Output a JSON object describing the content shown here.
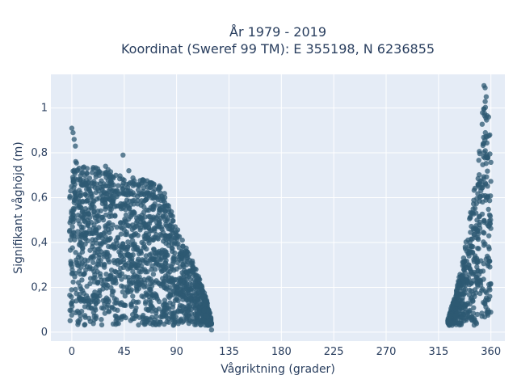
{
  "chart_data": {
    "type": "scatter",
    "title": "År 1979 - 2019",
    "subtitle": "Koordinat (Sweref 99 TM): E 355198, N 6236855",
    "xlabel": "Vågriktning (grader)",
    "ylabel": "Signifikant våghöjd (m)",
    "xlim": [
      -18,
      372
    ],
    "ylim": [
      -0.04,
      1.15
    ],
    "x_ticks": [
      0,
      45,
      90,
      135,
      180,
      225,
      270,
      315,
      360
    ],
    "x_tick_labels": [
      "0",
      "45",
      "90",
      "135",
      "180",
      "225",
      "270",
      "315",
      "360"
    ],
    "y_ticks": [
      0,
      0.2,
      0.4,
      0.6,
      0.8,
      1
    ],
    "y_tick_labels": [
      "0",
      "0,2",
      "0,4",
      "0,6",
      "0,8",
      "1"
    ],
    "grid": true,
    "marker_color": "#2e5a73",
    "background_color": "#e5ecf6",
    "clusters": [
      {
        "envelope_x": [
          -2,
          0,
          5,
          15,
          30,
          45,
          60,
          70,
          78,
          85,
          90,
          95,
          100,
          105,
          110,
          115,
          120
        ],
        "envelope_ymax": [
          0.87,
          0.78,
          0.76,
          0.74,
          0.73,
          0.7,
          0.68,
          0.68,
          0.64,
          0.55,
          0.47,
          0.41,
          0.36,
          0.3,
          0.24,
          0.16,
          0.06
        ],
        "ymin": 0.03
      },
      {
        "envelope_x": [
          323,
          330,
          335,
          340,
          345,
          350,
          352,
          355,
          357,
          360
        ],
        "envelope_ymax": [
          0.06,
          0.18,
          0.3,
          0.45,
          0.62,
          0.8,
          0.95,
          1.08,
          0.95,
          0.8
        ],
        "ymin": 0.03
      }
    ],
    "outliers": [
      {
        "x": 0,
        "y": 0.91
      },
      {
        "x": 1,
        "y": 0.89
      },
      {
        "x": 2,
        "y": 0.86
      },
      {
        "x": 3,
        "y": 0.83
      },
      {
        "x": 44,
        "y": 0.79
      },
      {
        "x": 49,
        "y": 0.72
      },
      {
        "x": 29,
        "y": 0.74
      },
      {
        "x": 61,
        "y": 0.68
      },
      {
        "x": 354,
        "y": 1.1
      },
      {
        "x": 355,
        "y": 1.09
      },
      {
        "x": 356,
        "y": 1.05
      },
      {
        "x": 358,
        "y": 0.96
      },
      {
        "x": 359,
        "y": 0.88
      },
      {
        "x": 120,
        "y": 0.01
      },
      {
        "x": 120,
        "y": 0.04
      }
    ]
  }
}
